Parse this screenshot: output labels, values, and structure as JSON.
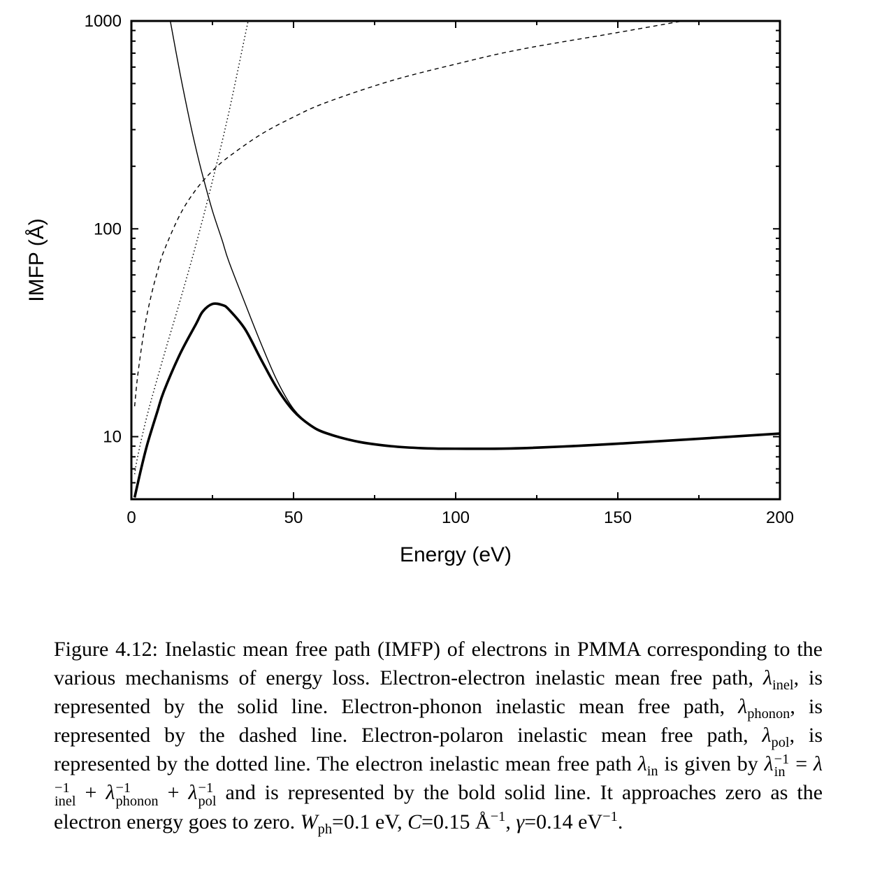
{
  "chart_data": {
    "type": "line",
    "xlabel": "Energy (eV)",
    "ylabel": "IMFP (Å)",
    "xlim": [
      0,
      200
    ],
    "ylim": [
      5,
      1000
    ],
    "yscale": "log",
    "xticks": [
      "0",
      "50",
      "100",
      "150",
      "200"
    ],
    "yticks": [
      "10",
      "100",
      "1000"
    ],
    "grid": false,
    "series": [
      {
        "style": "solid",
        "x": [
          12,
          15,
          18,
          20,
          22,
          25,
          28,
          30,
          35,
          40,
          45,
          50,
          55,
          60,
          70,
          80,
          90,
          100,
          120,
          150,
          200
        ],
        "values": [
          1000,
          560,
          330,
          240,
          180,
          122,
          88,
          70,
          44,
          28,
          18.5,
          13.6,
          11.5,
          10.5,
          9.5,
          9.05,
          8.85,
          8.8,
          8.85,
          9.3,
          10.3
        ]
      },
      {
        "style": "dashed",
        "x": [
          1,
          2,
          4,
          6,
          8,
          10,
          15,
          20,
          25,
          30,
          40,
          50,
          60,
          80,
          100,
          120,
          150,
          170
        ],
        "values": [
          14,
          20,
          33,
          47,
          62,
          78,
          117,
          155,
          190,
          222,
          285,
          345,
          405,
          515,
          620,
          730,
          880,
          1000
        ],
        "pixel_hint": "none"
      },
      {
        "style": "dotted",
        "x": [
          1,
          2,
          5,
          10,
          15,
          20,
          25,
          30,
          36
        ],
        "values": [
          6.6,
          8.1,
          12.9,
          24.5,
          45,
          85,
          170,
          360,
          1000
        ]
      },
      {
        "style": "bold",
        "x": [
          1,
          3,
          5,
          8,
          10,
          15,
          20,
          22,
          25,
          28,
          30,
          35,
          40,
          45,
          50,
          55,
          60,
          70,
          80,
          90,
          100,
          120,
          150,
          200
        ],
        "values": [
          5.1,
          7,
          9.3,
          13.2,
          16.5,
          25,
          35,
          40,
          43.5,
          43,
          41,
          33,
          23.5,
          17,
          13.3,
          11.4,
          10.4,
          9.45,
          9.0,
          8.8,
          8.75,
          8.8,
          9.25,
          10.35
        ]
      }
    ]
  },
  "caption": {
    "figure_label": "Figure 4.12:",
    "part1": "Inelastic mean free path (IMFP) of electrons in PMMA corresponding to the various mechanisms of energy loss. Electron-electron inelastic mean free path, ",
    "lambda": "λ",
    "sub_inel": "inel",
    "part2": ", is represented by the solid line. Electron-phonon inelastic mean free path, ",
    "sub_phonon": "phonon",
    "part3": ", is represented by the dashed line. Electron-polaron inelastic mean free path, ",
    "sub_pol": "pol",
    "part4": ", is represented by the dotted line. The electron inelastic mean free path ",
    "sub_in": "in",
    "part5": " is given by ",
    "sup_minus1": "−1",
    "equals": " = ",
    "plus": " + ",
    "part6": " and is represented by the bold solid line. It approaches zero as the electron energy goes to zero. ",
    "W": "W",
    "sub_ph": "ph",
    "part7": "=0.1 eV, ",
    "C": "C",
    "part8": "=0.15 Å",
    "part9": ", ",
    "gamma": "γ",
    "part10": "=0.14 eV",
    "part11": "."
  }
}
